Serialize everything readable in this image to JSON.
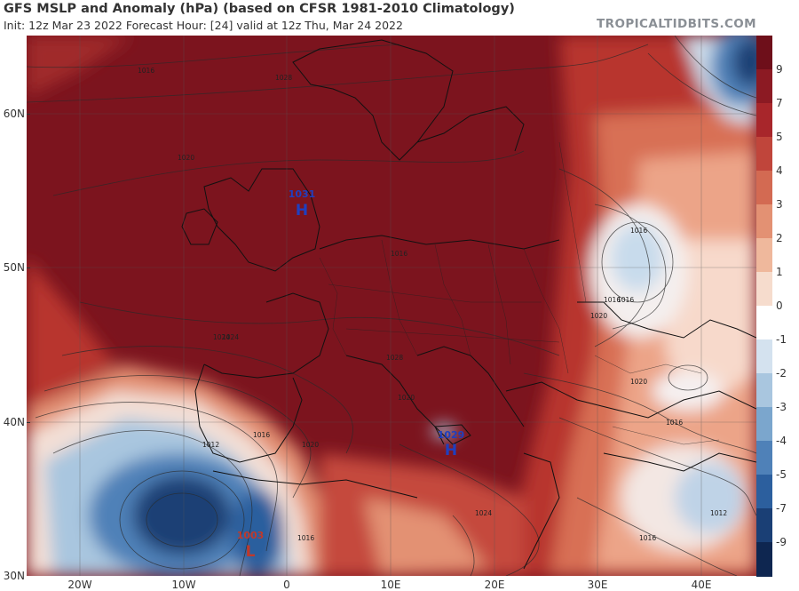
{
  "header": {
    "title": "GFS MSLP and Anomaly (hPa) (based on CFSR 1981-2010 Climatology)",
    "subtitle": "Init: 12z Mar 23 2022   Forecast Hour: [24]   valid at 12z Thu, Mar 24 2022",
    "brand": "TROPICALTIDBITS.COM"
  },
  "axes": {
    "lat_labels": [
      "60N",
      "50N",
      "40N",
      "30N"
    ],
    "lon_labels": [
      "20W",
      "10W",
      "0",
      "10E",
      "20E",
      "30E",
      "40E"
    ]
  },
  "colorbar": {
    "labels": [
      "9",
      "7",
      "5",
      "4",
      "3",
      "2",
      "1",
      "0",
      "-1",
      "-2",
      "-3",
      "-4",
      "-5",
      "-7",
      "-9"
    ],
    "colors": [
      "#6e0f1a",
      "#8c1a23",
      "#a8262b",
      "#c0453b",
      "#d36a52",
      "#e39173",
      "#efb89c",
      "#f6dccd",
      "#ffffff",
      "#d4e2ef",
      "#a9c6df",
      "#7ba6cd",
      "#4f81b8",
      "#2c5f9e",
      "#1a3f75",
      "#0e2650"
    ]
  },
  "pressure_centers": [
    {
      "name": "high-britain",
      "value": "1031",
      "type": "H",
      "color": "#1f3fbf"
    },
    {
      "name": "high-mediterranean",
      "value": "1029",
      "type": "H",
      "color": "#1f3fbf"
    },
    {
      "name": "low-morocco",
      "value": "1003",
      "type": "L",
      "color": "#c0392b"
    }
  ],
  "isobar_labels": [
    "1016",
    "1020",
    "1024",
    "1028",
    "1016",
    "1020",
    "1016",
    "1012",
    "1016",
    "1020",
    "1024",
    "1028",
    "1016",
    "1020",
    "1016",
    "1016",
    "1020",
    "1016",
    "1012",
    "1016",
    "1024"
  ]
}
